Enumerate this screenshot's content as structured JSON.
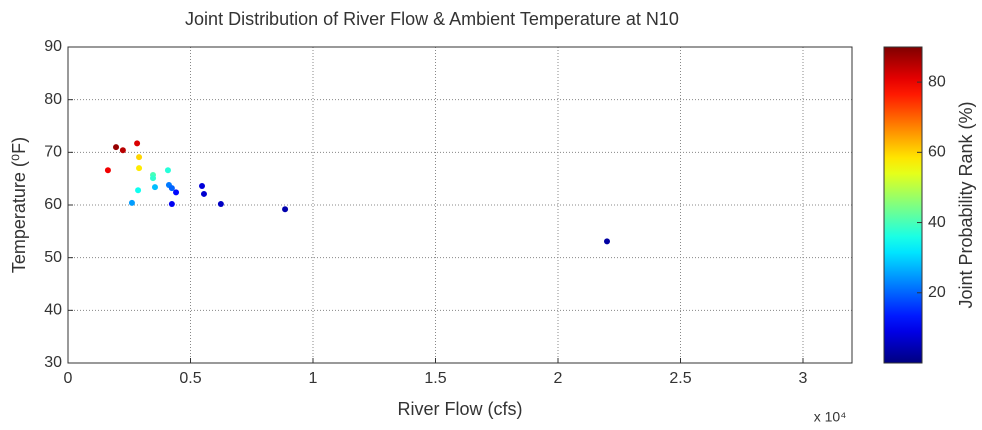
{
  "chart_data": {
    "type": "scatter",
    "title": "Joint Distribution of River Flow & Ambient Temperature at N10",
    "x_label": "River Flow (cfs)",
    "x_multiplier": "x 10⁴",
    "y_label": "Temperature (⁰F)",
    "colorbar_label": "Joint Probability Rank (%)",
    "colormap": "jet",
    "clim": [
      0,
      90
    ],
    "cticks": [
      20,
      40,
      60,
      80
    ],
    "xlim": [
      0,
      3.2
    ],
    "xticks": [
      0,
      0.5,
      1,
      1.5,
      2,
      2.5,
      3
    ],
    "ylim": [
      30,
      90
    ],
    "yticks": [
      30,
      40,
      50,
      60,
      70,
      80,
      90
    ],
    "grid": true,
    "x": [
      0.163,
      0.196,
      0.224,
      0.282,
      0.29,
      0.29,
      0.286,
      0.261,
      0.347,
      0.347,
      0.355,
      0.408,
      0.412,
      0.424,
      0.441,
      0.424,
      0.547,
      0.555,
      0.624,
      0.886,
      2.2
    ],
    "y": [
      66.6,
      71.0,
      70.4,
      71.7,
      69.1,
      67.0,
      62.8,
      60.4,
      65.7,
      65.1,
      63.4,
      66.6,
      63.8,
      63.2,
      62.4,
      60.2,
      63.6,
      62.1,
      60.2,
      59.2,
      53.1
    ],
    "rank": [
      80,
      88,
      85,
      82,
      60,
      58,
      35,
      25,
      40,
      38,
      28,
      37,
      22,
      20,
      12,
      10,
      8,
      7,
      6,
      4,
      3
    ]
  }
}
